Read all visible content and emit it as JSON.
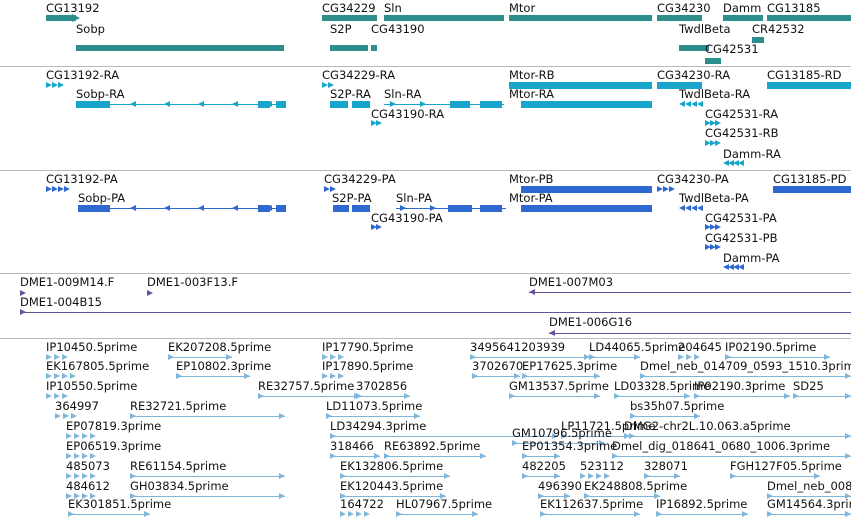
{
  "colors": {
    "gene": "#2d8f8c",
    "rna": "#17a5c9",
    "protein": "#2f68d0",
    "clone": "#6a4f9e",
    "est": "#7fb6da",
    "separator": "#b9b9b9"
  },
  "tracks": {
    "genes": {
      "name": "Gene",
      "items": [
        {
          "label": "CG13192",
          "strand": "-"
        },
        {
          "label": "Sobp",
          "strand": "-"
        },
        {
          "label": "CG34229",
          "strand": "+"
        },
        {
          "label": "S2P",
          "strand": "+"
        },
        {
          "label": "Sln",
          "strand": "+"
        },
        {
          "label": "CG43190",
          "strand": "+"
        },
        {
          "label": "Mtor",
          "strand": "+"
        },
        {
          "label": "CG34230",
          "strand": "+"
        },
        {
          "label": "TwdlBeta",
          "strand": "-"
        },
        {
          "label": "Damm",
          "strand": "-"
        },
        {
          "label": "CG13185",
          "strand": "+"
        },
        {
          "label": "CR42532",
          "strand": "-"
        },
        {
          "label": "CG42531",
          "strand": "+"
        }
      ]
    },
    "transcripts": {
      "name": "mRNA",
      "items": [
        {
          "label": "CG13192-RA"
        },
        {
          "label": "Sobp-RA"
        },
        {
          "label": "CG34229-RA"
        },
        {
          "label": "S2P-RA"
        },
        {
          "label": "Sln-RA"
        },
        {
          "label": "CG43190-RA"
        },
        {
          "label": "Mtor-RB"
        },
        {
          "label": "Mtor-RA"
        },
        {
          "label": "CG34230-RA"
        },
        {
          "label": "TwdlBeta-RA"
        },
        {
          "label": "CG13185-RD"
        },
        {
          "label": "CG42531-RA"
        },
        {
          "label": "CG42531-RB"
        },
        {
          "label": "Damm-RA"
        }
      ]
    },
    "proteins": {
      "name": "Protein",
      "items": [
        {
          "label": "CG13192-PA"
        },
        {
          "label": "Sobp-PA"
        },
        {
          "label": "CG34229-PA"
        },
        {
          "label": "S2P-PA"
        },
        {
          "label": "Sln-PA"
        },
        {
          "label": "CG43190-PA"
        },
        {
          "label": "Mtor-PB"
        },
        {
          "label": "Mtor-PA"
        },
        {
          "label": "CG34230-PA"
        },
        {
          "label": "TwdlBeta-PA"
        },
        {
          "label": "CG13185-PD"
        },
        {
          "label": "CG42531-PA"
        },
        {
          "label": "CG42531-PB"
        },
        {
          "label": "Damm-PA"
        }
      ]
    },
    "clones": {
      "name": "BAC clones",
      "items": [
        {
          "label": "DME1-009M14.F"
        },
        {
          "label": "DME1-003F13.F"
        },
        {
          "label": "DME1-004B15"
        },
        {
          "label": "DME1-007M03"
        },
        {
          "label": "DME1-006G16"
        }
      ]
    },
    "ests": {
      "name": "ESTs",
      "items": [
        {
          "label": "IP10450.5prime"
        },
        {
          "label": "EK207208.5prime"
        },
        {
          "label": "IP17790.5prime"
        },
        {
          "label": "3495641203939"
        },
        {
          "label": "LD44065.5prime"
        },
        {
          "label": "204645"
        },
        {
          "label": "IP02190.5prime"
        },
        {
          "label": "EK167805.5prime"
        },
        {
          "label": "EP10802.3prime"
        },
        {
          "label": "IP17890.5prime"
        },
        {
          "label": "3702670"
        },
        {
          "label": "EP17625.3prime"
        },
        {
          "label": "Dmel_neb_014709_0593_1510.3prime"
        },
        {
          "label": "IP10550.5prime"
        },
        {
          "label": "RE32757.5prime"
        },
        {
          "label": "3702856"
        },
        {
          "label": "GM13537.5prime"
        },
        {
          "label": "LD03328.5prime"
        },
        {
          "label": "IP02190.3prime"
        },
        {
          "label": "SD25"
        },
        {
          "label": "364997"
        },
        {
          "label": "RE32721.5prime"
        },
        {
          "label": "LD11073.5prime"
        },
        {
          "label": "LP11721.5prime"
        },
        {
          "label": "bs35h07.5prime"
        },
        {
          "label": "EP07819.3prime"
        },
        {
          "label": "LD34294.3prime"
        },
        {
          "label": "GM10796.5prime"
        },
        {
          "label": "DMG2-chr2L.10.063.a5prime"
        },
        {
          "label": "EP06519.3prime"
        },
        {
          "label": "318466"
        },
        {
          "label": "RE63892.5prime"
        },
        {
          "label": "EP01354.3prime"
        },
        {
          "label": "Dmel_dig_018641_0680_1006.3prime"
        },
        {
          "label": "485073"
        },
        {
          "label": "RE61154.5prime"
        },
        {
          "label": "EK132806.5prime"
        },
        {
          "label": "482205"
        },
        {
          "label": "523112"
        },
        {
          "label": "328071"
        },
        {
          "label": "FGH127F05.5prime"
        },
        {
          "label": "484612"
        },
        {
          "label": "GH03834.5prime"
        },
        {
          "label": "EK120443.5prime"
        },
        {
          "label": "496390"
        },
        {
          "label": "EK248808.5prime"
        },
        {
          "label": "Dmel_neb_008"
        },
        {
          "label": "EK301851.5prime"
        },
        {
          "label": "164722"
        },
        {
          "label": "HL07967.5prime"
        },
        {
          "label": "EK112637.5prime"
        },
        {
          "label": "IP16892.5prime"
        },
        {
          "label": "GM14564.3prime"
        }
      ]
    }
  }
}
